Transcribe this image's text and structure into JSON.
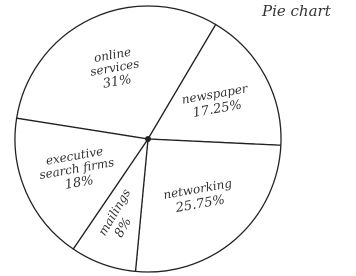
{
  "chart_data": {
    "type": "pie",
    "title": "Pie chart",
    "categories": [
      "online services",
      "newspaper",
      "networking",
      "mailings",
      "executive search firms"
    ],
    "values": [
      31,
      17.25,
      25.75,
      8,
      18
    ],
    "value_labels": [
      "31%",
      "17.25%",
      "25.75%",
      "8%",
      "18%"
    ],
    "color": "#ffffff"
  }
}
